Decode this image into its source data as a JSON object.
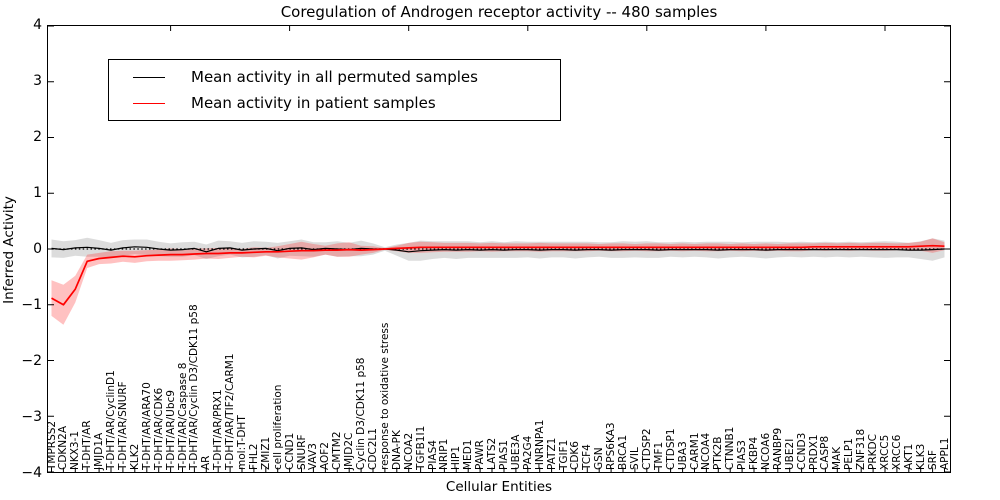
{
  "title": "Coregulation of Androgen receptor activity -- 480 samples",
  "legend": {
    "items": [
      {
        "label": "Mean activity in all permuted samples",
        "color": "#000000"
      },
      {
        "label": "Mean activity in patient samples",
        "color": "#ff0000"
      }
    ]
  },
  "colors": {
    "permuted_line": "#000000",
    "permuted_band": "rgba(140,140,140,0.30)",
    "patient_line": "#ff0000",
    "patient_band": "rgba(255,50,50,0.30)",
    "reference_line": "#000000",
    "frame": "#000000"
  },
  "chart_data": {
    "type": "line",
    "title": "Coregulation of Androgen receptor activity -- 480 samples",
    "xlabel": "Cellular Entities",
    "ylabel": "Inferred Activity",
    "ylim": [
      -4,
      4
    ],
    "ytick_labels": [
      "4",
      "3",
      "2",
      "1",
      "0",
      "−1",
      "−2",
      "−3",
      "−4"
    ],
    "ytick_values": [
      4,
      3,
      2,
      1,
      0,
      -1,
      -2,
      -3,
      -4
    ],
    "grid": false,
    "legend_position": "upper left",
    "reference_line": {
      "y": 0,
      "style": "dotted",
      "color": "#000000"
    },
    "categories": [
      "TMPRSS2",
      "CDKN2A",
      "NKX3-1",
      "T-DHT/AR",
      "JMJD1A",
      "T-DHT/AR/CyclinD1",
      "T-DHT/AR/SNURF",
      "KLK2",
      "T-DHT/AR/ARA70",
      "T-DHT/AR/CDK6",
      "T-DHT/AR/Ubc9",
      "T-DHT/AR/Caspase 8",
      "T-DHT/AR/Cyclin D3/CDK11 p58",
      "AR",
      "T-DHT/AR/PRX1",
      "T-DHT/AR/TIF2/CARM1",
      "mol:T-DHT",
      "FHL2",
      "ZMIZ1",
      "cell proliferation",
      "CCND1",
      "SNURF",
      "VAV3",
      "AOF2",
      "CMTM2",
      "JMJD2C",
      "Cyclin D3/CDK11 p58",
      "CDC2L1",
      "response to oxidative stress",
      "DNA-PK",
      "NCOA2",
      "TGFB1I1",
      "PIAS4",
      "NRIP1",
      "HIP1",
      "MED1",
      "PAWR",
      "LATS2",
      "PIAS1",
      "UBE3A",
      "PA2G4",
      "HNRNPA1",
      "PATZ1",
      "TGIF1",
      "CDK6",
      "TCF4",
      "GSN",
      "RPS6KA3",
      "BRCA1",
      "SVIL",
      "CTDSP2",
      "TMF1",
      "CTDSP1",
      "UBA3",
      "CARM1",
      "NCOA4",
      "PTK2B",
      "CTNNB1",
      "PIAS3",
      "FKBP4",
      "NCOA6",
      "RANBP9",
      "UBE2I",
      "CCND3",
      "PRDX1",
      "CASP8",
      "MAK",
      "PELP1",
      "ZNF318",
      "PRKDC",
      "XRCC5",
      "XRCC6",
      "AKT1",
      "KLK3",
      "SRF",
      "APPL1"
    ],
    "series": [
      {
        "name": "Mean activity in all permuted samples",
        "color": "#000000",
        "values": [
          0.01,
          -0.01,
          0.02,
          0.03,
          0.01,
          -0.02,
          0.02,
          0.04,
          0.03,
          0.0,
          -0.02,
          -0.01,
          0.01,
          -0.05,
          0.01,
          0.02,
          -0.02,
          0.0,
          0.01,
          -0.03,
          0.01,
          0.02,
          -0.01,
          0.01,
          0.0,
          -0.01,
          0.01,
          0.0,
          0.0,
          -0.02,
          -0.05,
          -0.03,
          -0.02,
          -0.01,
          -0.02,
          -0.01,
          -0.02,
          -0.01,
          -0.02,
          -0.01,
          -0.01,
          -0.02,
          -0.01,
          -0.01,
          -0.02,
          -0.01,
          -0.01,
          -0.02,
          -0.01,
          -0.01,
          -0.01,
          -0.02,
          -0.01,
          -0.01,
          -0.01,
          -0.01,
          -0.02,
          -0.01,
          -0.01,
          -0.01,
          -0.02,
          -0.01,
          -0.01,
          -0.01,
          -0.01,
          -0.01,
          -0.01,
          -0.01,
          -0.01,
          -0.01,
          -0.01,
          -0.01,
          -0.02,
          -0.02,
          -0.01,
          0.0
        ],
        "band_halfwidth": [
          0.16,
          0.15,
          0.14,
          0.17,
          0.15,
          0.13,
          0.14,
          0.13,
          0.14,
          0.13,
          0.12,
          0.13,
          0.12,
          0.13,
          0.14,
          0.12,
          0.13,
          0.14,
          0.12,
          0.14,
          0.13,
          0.15,
          0.13,
          0.11,
          0.14,
          0.12,
          0.14,
          0.1,
          0.03,
          0.1,
          0.16,
          0.18,
          0.16,
          0.15,
          0.16,
          0.15,
          0.14,
          0.15,
          0.14,
          0.15,
          0.14,
          0.15,
          0.14,
          0.14,
          0.15,
          0.14,
          0.13,
          0.14,
          0.15,
          0.14,
          0.15,
          0.14,
          0.13,
          0.14,
          0.13,
          0.14,
          0.15,
          0.14,
          0.13,
          0.14,
          0.15,
          0.14,
          0.13,
          0.14,
          0.13,
          0.14,
          0.13,
          0.14,
          0.13,
          0.14,
          0.15,
          0.14,
          0.13,
          0.16,
          0.2,
          0.15
        ]
      },
      {
        "name": "Mean activity in patient samples",
        "color": "#ff0000",
        "values": [
          -0.88,
          -1.0,
          -0.72,
          -0.22,
          -0.17,
          -0.15,
          -0.13,
          -0.14,
          -0.12,
          -0.11,
          -0.1,
          -0.1,
          -0.09,
          -0.08,
          -0.08,
          -0.07,
          -0.07,
          -0.06,
          -0.05,
          -0.05,
          -0.04,
          -0.03,
          -0.03,
          -0.02,
          -0.02,
          -0.01,
          -0.02,
          -0.01,
          0.0,
          0.01,
          0.02,
          0.03,
          0.03,
          0.03,
          0.03,
          0.03,
          0.03,
          0.03,
          0.03,
          0.03,
          0.03,
          0.03,
          0.03,
          0.03,
          0.03,
          0.03,
          0.03,
          0.03,
          0.03,
          0.03,
          0.03,
          0.03,
          0.03,
          0.03,
          0.03,
          0.03,
          0.03,
          0.03,
          0.03,
          0.03,
          0.03,
          0.03,
          0.03,
          0.03,
          0.04,
          0.04,
          0.04,
          0.04,
          0.04,
          0.04,
          0.04,
          0.04,
          0.04,
          0.05,
          0.06,
          0.05
        ],
        "band_halfwidth": [
          0.32,
          0.36,
          0.24,
          0.12,
          0.1,
          0.11,
          0.1,
          0.11,
          0.1,
          0.1,
          0.11,
          0.1,
          0.1,
          0.09,
          0.1,
          0.09,
          0.07,
          0.09,
          0.07,
          0.1,
          0.13,
          0.16,
          0.12,
          0.08,
          0.12,
          0.13,
          0.08,
          0.06,
          0.015,
          0.05,
          0.09,
          0.1,
          0.09,
          0.08,
          0.08,
          0.08,
          0.07,
          0.08,
          0.07,
          0.07,
          0.07,
          0.08,
          0.07,
          0.07,
          0.07,
          0.07,
          0.06,
          0.07,
          0.07,
          0.06,
          0.07,
          0.07,
          0.06,
          0.07,
          0.06,
          0.07,
          0.07,
          0.06,
          0.07,
          0.06,
          0.07,
          0.06,
          0.07,
          0.07,
          0.06,
          0.07,
          0.06,
          0.07,
          0.06,
          0.07,
          0.07,
          0.06,
          0.07,
          0.08,
          0.13,
          0.07
        ]
      }
    ]
  }
}
